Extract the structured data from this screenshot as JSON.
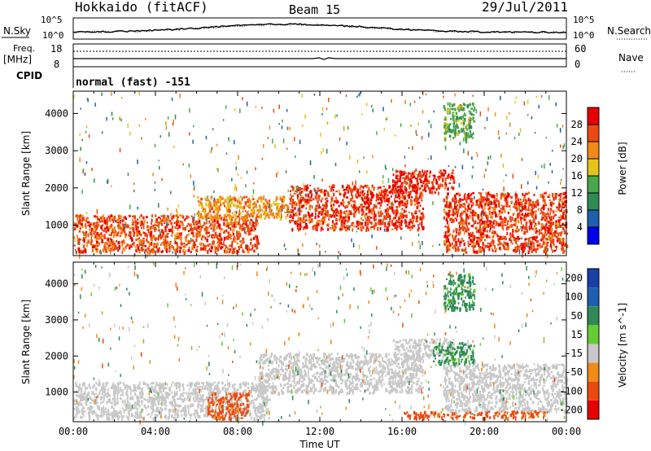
{
  "header": {
    "station": "Hokkaido (fitACF)",
    "beam": "Beam 15",
    "date": "29/Jul/2011"
  },
  "strip": {
    "nsky_label": "N.Sky",
    "nsky_ticks": [
      "10^5",
      "10^0"
    ],
    "nsearch_label": "N.Search",
    "nsearch_ticks": [
      "10^5",
      "10^0"
    ],
    "freq_label": "Freq.",
    "freq_unit": "[MHz]",
    "freq_ticks": [
      "18",
      "8"
    ],
    "nave_label": "Nave",
    "nave_ticks": [
      "60",
      "0"
    ],
    "cpid_label": "CPID",
    "cpid_value": "normal (fast) -151"
  },
  "chart_data": [
    {
      "type": "heatmap",
      "name": "power",
      "xlabel": "",
      "ylabel": "Slant Range [km]",
      "x_ticks": [
        "00:00",
        "04:00",
        "08:00",
        "12:00",
        "16:00",
        "20:00",
        "00:00"
      ],
      "y_ticks": [
        "1000",
        "2000",
        "3000",
        "4000"
      ],
      "ylim": [
        180,
        4600
      ],
      "xlim_hours": [
        0,
        24
      ],
      "colorbar": {
        "label": "Power [dB]",
        "ticks": [
          "4",
          "8",
          "12",
          "16",
          "20",
          "24",
          "28"
        ],
        "colors": [
          "#0000ee",
          "#1f5fb0",
          "#2f8a55",
          "#4aa84a",
          "#e6c21a",
          "#f08a18",
          "#ea4a12",
          "#e80000"
        ]
      },
      "approx_echo_bands": [
        {
          "t_start": 0.0,
          "t_end": 9.0,
          "range_low": 300,
          "range_high": 1300,
          "power_db": 26
        },
        {
          "t_start": 6.0,
          "t_end": 10.5,
          "range_low": 1200,
          "range_high": 1800,
          "power_db": 22
        },
        {
          "t_start": 10.5,
          "t_end": 17.0,
          "range_low": 900,
          "range_high": 2100,
          "power_db": 27
        },
        {
          "t_start": 15.5,
          "t_end": 18.5,
          "range_low": 1900,
          "range_high": 2500,
          "power_db": 28
        },
        {
          "t_start": 18.0,
          "t_end": 24.0,
          "range_low": 300,
          "range_high": 1900,
          "power_db": 27
        },
        {
          "t_start": 18.0,
          "t_end": 19.5,
          "range_low": 3300,
          "range_high": 4300,
          "power_db": 14
        }
      ]
    },
    {
      "type": "heatmap",
      "name": "velocity",
      "xlabel": "Time UT",
      "ylabel": "Slant Range [km]",
      "x_ticks": [
        "00:00",
        "04:00",
        "08:00",
        "12:00",
        "16:00",
        "20:00",
        "00:00"
      ],
      "y_ticks": [
        "1000",
        "2000",
        "3000",
        "4000"
      ],
      "ylim": [
        180,
        4600
      ],
      "xlim_hours": [
        0,
        24
      ],
      "colorbar": {
        "label": "Velocity [m s^-1]",
        "ticks": [
          "200",
          "100",
          "50",
          "15",
          "-15",
          "-50",
          "-100",
          "-200"
        ],
        "colors": [
          "#1a3fa8",
          "#1f5fb0",
          "#2f8a55",
          "#66cc33",
          "#c8c8c8",
          "#f08a18",
          "#ea4a12",
          "#e80000"
        ]
      },
      "approx_echo_bands": [
        {
          "t_start": 0.0,
          "t_end": 9.5,
          "range_low": 300,
          "range_high": 1300,
          "velocity": 0
        },
        {
          "t_start": 6.5,
          "t_end": 8.5,
          "range_low": 300,
          "range_high": 1000,
          "velocity": -60
        },
        {
          "t_start": 9.0,
          "t_end": 17.0,
          "range_low": 1000,
          "range_high": 2100,
          "velocity": 0
        },
        {
          "t_start": 15.5,
          "t_end": 18.5,
          "range_low": 2000,
          "range_high": 2500,
          "velocity": 0
        },
        {
          "t_start": 17.5,
          "t_end": 19.5,
          "range_low": 1800,
          "range_high": 2400,
          "velocity": 40
        },
        {
          "t_start": 16.0,
          "t_end": 23.0,
          "range_low": 300,
          "range_high": 500,
          "velocity": -60
        },
        {
          "t_start": 18.0,
          "t_end": 24.0,
          "range_low": 500,
          "range_high": 1800,
          "velocity": 0
        },
        {
          "t_start": 18.0,
          "t_end": 19.5,
          "range_low": 3300,
          "range_high": 4300,
          "velocity": 40
        }
      ]
    }
  ]
}
